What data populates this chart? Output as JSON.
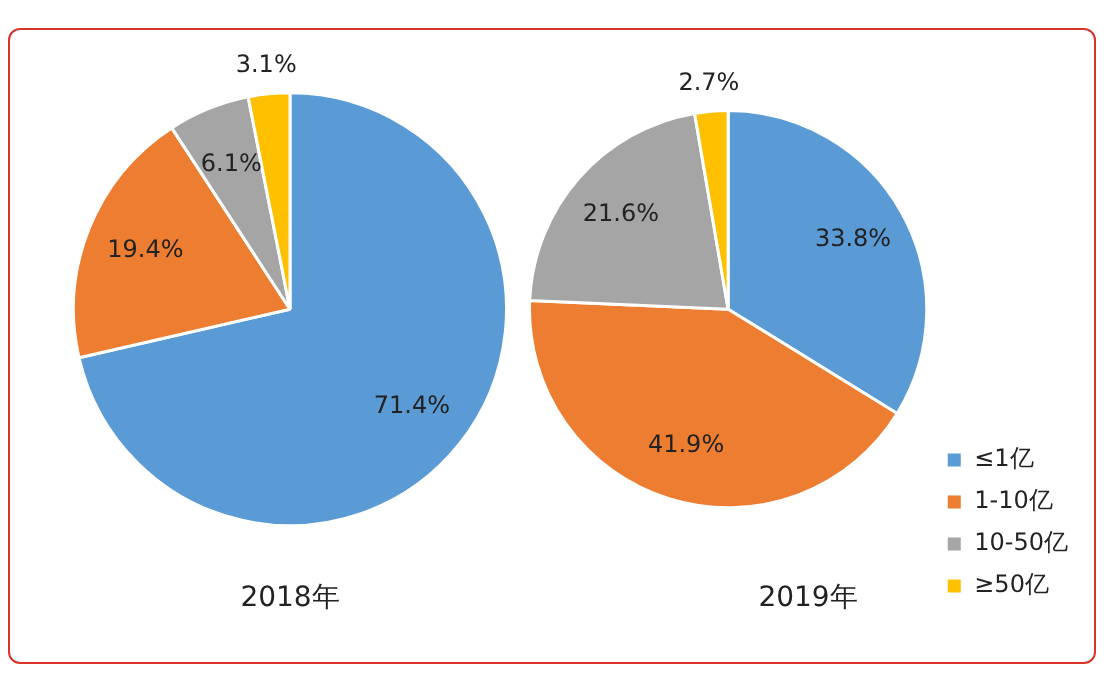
{
  "chart_data": [
    {
      "type": "pie",
      "title": "2018年",
      "categories": [
        null,
        null,
        null,
        null
      ],
      "values": [
        71.4,
        19.4,
        6.1,
        3.1
      ],
      "colors": [
        "#5b9bd5",
        "#ed7d31",
        "#a5a5a5",
        "#ffc000"
      ],
      "value_labels": [
        "71.4%",
        "19.4%",
        "6.1%",
        "3.1%"
      ],
      "legend": false
    },
    {
      "type": "pie",
      "title": "2019年",
      "categories": [
        "≤1亿",
        "1-10亿",
        "10-50亿",
        "≥50亿"
      ],
      "values": [
        33.8,
        41.9,
        21.6,
        2.7
      ],
      "colors": [
        "#5b9bd5",
        "#ed7d31",
        "#a5a5a5",
        "#ffc000"
      ],
      "value_labels": [
        "33.8%",
        "41.9%",
        "21.6%",
        "2.7%"
      ],
      "legend": "bottom right"
    }
  ]
}
